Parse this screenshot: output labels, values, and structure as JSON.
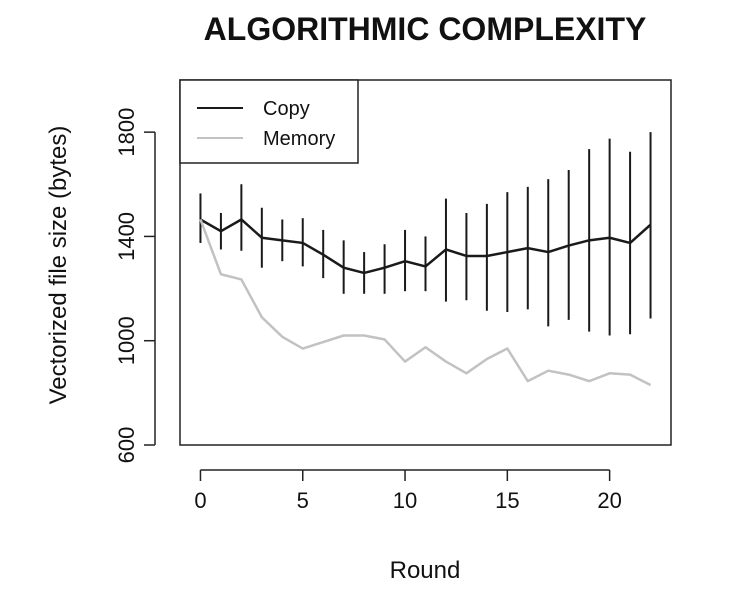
{
  "chart_data": {
    "type": "line",
    "title": "ALGORITHMIC COMPLEXITY",
    "xlabel": "Round",
    "ylabel": "Vectorized file size (bytes)",
    "xlim": [
      -1,
      23
    ],
    "ylim": [
      600,
      2000
    ],
    "xticks": [
      0,
      5,
      10,
      15,
      20
    ],
    "yticks": [
      600,
      1000,
      1400,
      1800
    ],
    "legend_position": "top-left",
    "grid": false,
    "x": [
      0,
      1,
      2,
      3,
      4,
      5,
      6,
      7,
      8,
      9,
      10,
      11,
      12,
      13,
      14,
      15,
      16,
      17,
      18,
      19,
      20,
      21,
      22
    ],
    "series": [
      {
        "name": "Copy",
        "color": "#1a1a1a",
        "values": [
          1465,
          1420,
          1465,
          1395,
          1385,
          1375,
          1330,
          1280,
          1260,
          1280,
          1305,
          1285,
          1350,
          1325,
          1325,
          1340,
          1355,
          1340,
          1365,
          1385,
          1395,
          1375,
          1445
        ],
        "lower": [
          1375,
          1350,
          1345,
          1280,
          1305,
          1285,
          1240,
          1180,
          1180,
          1180,
          1190,
          1190,
          1150,
          1155,
          1115,
          1110,
          1120,
          1055,
          1080,
          1035,
          1020,
          1025,
          1085
        ],
        "upper": [
          1565,
          1490,
          1600,
          1510,
          1465,
          1470,
          1425,
          1385,
          1340,
          1370,
          1425,
          1400,
          1545,
          1490,
          1525,
          1570,
          1590,
          1620,
          1655,
          1735,
          1775,
          1725,
          1800
        ]
      },
      {
        "name": "Memory",
        "color": "#c2c2c2",
        "values": [
          1465,
          1255,
          1235,
          1090,
          1015,
          970,
          995,
          1020,
          1020,
          1005,
          920,
          975,
          920,
          875,
          930,
          970,
          845,
          885,
          870,
          845,
          875,
          870,
          830
        ]
      }
    ]
  }
}
